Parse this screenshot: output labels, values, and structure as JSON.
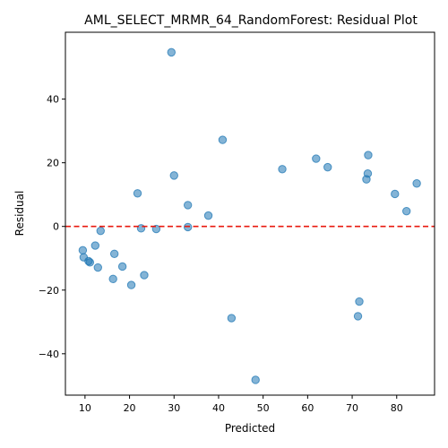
{
  "chart_data": {
    "type": "scatter",
    "title": "AML_SELECT_MRMR_64_RandomForest: Residual Plot",
    "xlabel": "Predicted",
    "ylabel": "Residual",
    "xlim": [
      5.6,
      88.5
    ],
    "ylim": [
      -53,
      61
    ],
    "xticks": [
      10,
      20,
      30,
      40,
      50,
      60,
      70,
      80
    ],
    "yticks": [
      -40,
      -20,
      0,
      20,
      40
    ],
    "grid": false,
    "reference_line": {
      "y": 0,
      "color": "#e8190f",
      "style": "dashed"
    },
    "point_color": "#1f77b4",
    "points": [
      {
        "x": 29.4,
        "y": 54.7
      },
      {
        "x": 40.9,
        "y": 27.2
      },
      {
        "x": 73.6,
        "y": 22.4
      },
      {
        "x": 61.9,
        "y": 21.3
      },
      {
        "x": 64.5,
        "y": 18.6
      },
      {
        "x": 54.3,
        "y": 18.0
      },
      {
        "x": 73.5,
        "y": 16.6
      },
      {
        "x": 30.0,
        "y": 16.0
      },
      {
        "x": 73.2,
        "y": 14.8
      },
      {
        "x": 84.5,
        "y": 13.5
      },
      {
        "x": 21.8,
        "y": 10.4
      },
      {
        "x": 79.6,
        "y": 10.2
      },
      {
        "x": 33.1,
        "y": 6.7
      },
      {
        "x": 82.2,
        "y": 4.8
      },
      {
        "x": 37.7,
        "y": 3.4
      },
      {
        "x": 33.1,
        "y": -0.2
      },
      {
        "x": 22.6,
        "y": -0.6
      },
      {
        "x": 26.0,
        "y": -0.8
      },
      {
        "x": 13.5,
        "y": -1.4
      },
      {
        "x": 12.3,
        "y": -6.0
      },
      {
        "x": 9.5,
        "y": -7.5
      },
      {
        "x": 16.6,
        "y": -8.6
      },
      {
        "x": 9.7,
        "y": -9.7
      },
      {
        "x": 10.8,
        "y": -10.9
      },
      {
        "x": 11.1,
        "y": -11.3
      },
      {
        "x": 18.4,
        "y": -12.6
      },
      {
        "x": 12.9,
        "y": -12.9
      },
      {
        "x": 23.3,
        "y": -15.3
      },
      {
        "x": 16.3,
        "y": -16.5
      },
      {
        "x": 20.4,
        "y": -18.4
      },
      {
        "x": 71.6,
        "y": -23.6
      },
      {
        "x": 71.3,
        "y": -28.2
      },
      {
        "x": 42.9,
        "y": -28.8
      },
      {
        "x": 48.3,
        "y": -48.2
      }
    ]
  }
}
